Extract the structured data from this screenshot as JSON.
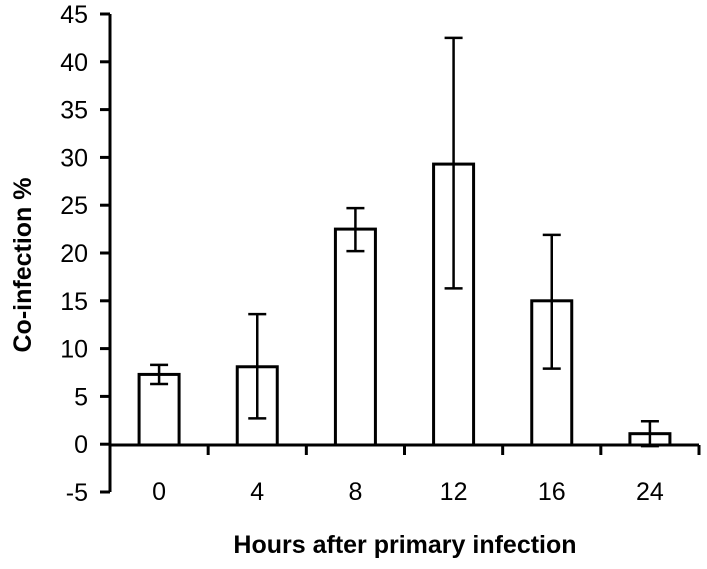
{
  "chart_data": {
    "type": "bar",
    "title": "",
    "xlabel": "Hours after primary infection",
    "ylabel": "Co-infection %",
    "categories": [
      "0",
      "4",
      "8",
      "12",
      "16",
      "24"
    ],
    "values": [
      7.3,
      8.1,
      22.5,
      29.3,
      15.0,
      1.1
    ],
    "error_upper": [
      8.3,
      13.6,
      24.7,
      42.5,
      21.9,
      2.4
    ],
    "error_lower": [
      6.3,
      2.7,
      20.2,
      16.3,
      7.9,
      -0.2
    ],
    "ylim": [
      -5,
      45
    ],
    "yticks": [
      -5,
      0,
      5,
      10,
      15,
      20,
      25,
      30,
      35,
      40,
      45
    ],
    "grid": false,
    "legend": null,
    "bar_fill": "#ffffff",
    "bar_stroke": "#000000"
  }
}
